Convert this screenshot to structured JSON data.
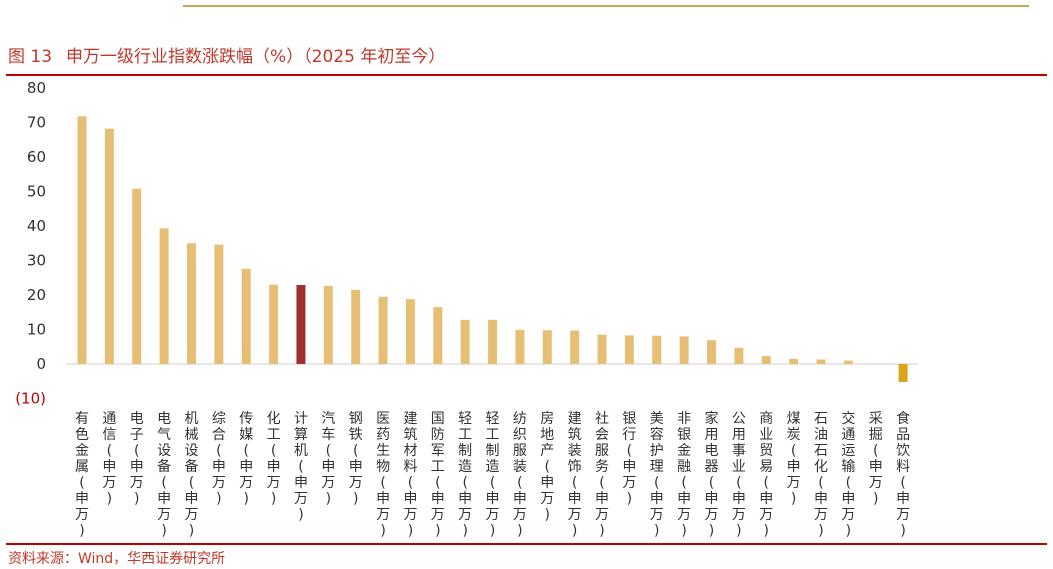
{
  "figure": {
    "number": "图 13",
    "title": "申万一级行业指数涨跌幅（%）（2025 年初至今）",
    "source": "资料来源：Wind，华西证券研究所"
  },
  "colors": {
    "bar": "#e6bf74",
    "highlight": "#a02f2f",
    "negative": "#d9a41b",
    "text": "#333333",
    "rule": "#c00000",
    "top_rule": "#c9a35a"
  },
  "chart_data": {
    "type": "bar",
    "title": "申万一级行业指数涨跌幅（%）（2025 年初至今）",
    "xlabel": "",
    "ylabel": "",
    "ylim": [
      -10,
      80
    ],
    "yticks": [
      80,
      70,
      60,
      50,
      40,
      30,
      20,
      10,
      0,
      -10
    ],
    "ytick_labels": [
      "80",
      "70",
      "60",
      "50",
      "40",
      "30",
      "20",
      "10",
      "0",
      "(10)"
    ],
    "grid": false,
    "legend": "none",
    "highlight_category": "计算机(申万)",
    "categories": [
      "有色金属(申万)",
      "通信(申万)",
      "电子(申万)",
      "电气设备(申万)",
      "机械设备(申万)",
      "综合(申万)",
      "传媒(申万)",
      "化工(申万)",
      "计算机(申万)",
      "汽车(申万)",
      "钢铁(申万)",
      "医药生物(申万)",
      "建筑材料(申万)",
      "国防军工(申万)",
      "轻工制造(申万)",
      "轻工制造(申万)",
      "纺织服装(申万)",
      "房地产(申万)",
      "建筑装饰(申万)",
      "社会服务(申万)",
      "银行(申万)",
      "美容护理(申万)",
      "非银金融(申万)",
      "家用电器(申万)",
      "公用事业(申万)",
      "商业贸易(申万)",
      "煤炭(申万)",
      "石油石化(申万)",
      "交通运输(申万)",
      "采掘(申万)",
      "食品饮料(申万)"
    ],
    "values": [
      71.8,
      68.2,
      50.8,
      39.3,
      35.0,
      34.6,
      27.6,
      23.0,
      22.9,
      22.6,
      21.5,
      19.5,
      18.8,
      16.5,
      12.8,
      12.8,
      9.9,
      9.8,
      9.7,
      8.5,
      8.3,
      8.2,
      8.0,
      6.9,
      4.7,
      2.3,
      1.5,
      1.3,
      1.0,
      0.0,
      -5.2
    ]
  }
}
